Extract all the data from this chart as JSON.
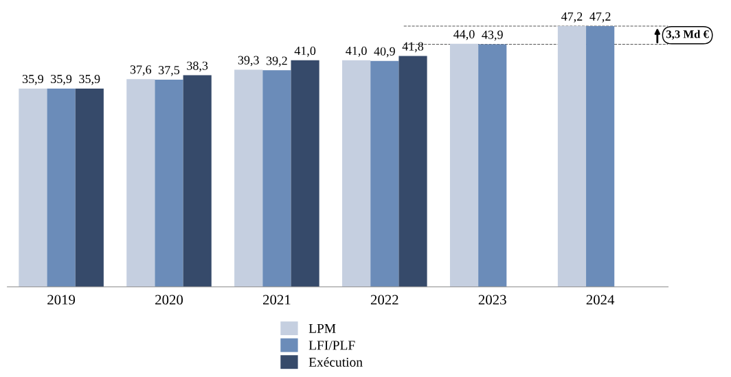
{
  "chart_data": {
    "type": "bar",
    "categories": [
      "2019",
      "2020",
      "2021",
      "2022",
      "2023",
      "2024"
    ],
    "series": [
      {
        "name": "LPM",
        "color": "#c5cfe0",
        "values": [
          35.9,
          37.6,
          39.3,
          41.0,
          44.0,
          47.2
        ],
        "value_labels": [
          "35,9",
          "37,6",
          "39,3",
          "41,0",
          "44,0",
          "47,2"
        ]
      },
      {
        "name": "LFI/PLF",
        "color": "#6b8cb9",
        "values": [
          35.9,
          37.5,
          39.2,
          40.9,
          43.9,
          47.2
        ],
        "value_labels": [
          "35,9",
          "37,5",
          "39,2",
          "40,9",
          "43,9",
          "47,2"
        ]
      },
      {
        "name": "Exécution",
        "color": "#364a6a",
        "values": [
          35.9,
          38.3,
          41.0,
          41.8,
          null,
          null
        ],
        "value_labels": [
          "35,9",
          "38,3",
          "41,0",
          "41,8",
          null,
          null
        ]
      }
    ],
    "ref_lines": [
      {
        "axis": "y",
        "value": 47.2,
        "line_style": "dashed",
        "color": "#555555"
      },
      {
        "axis": "y",
        "value": 43.9,
        "line_style": "dashed",
        "color": "#555555"
      }
    ],
    "annotations": [
      "3,3 Md €"
    ],
    "legend": "bottom",
    "grid": false
  }
}
